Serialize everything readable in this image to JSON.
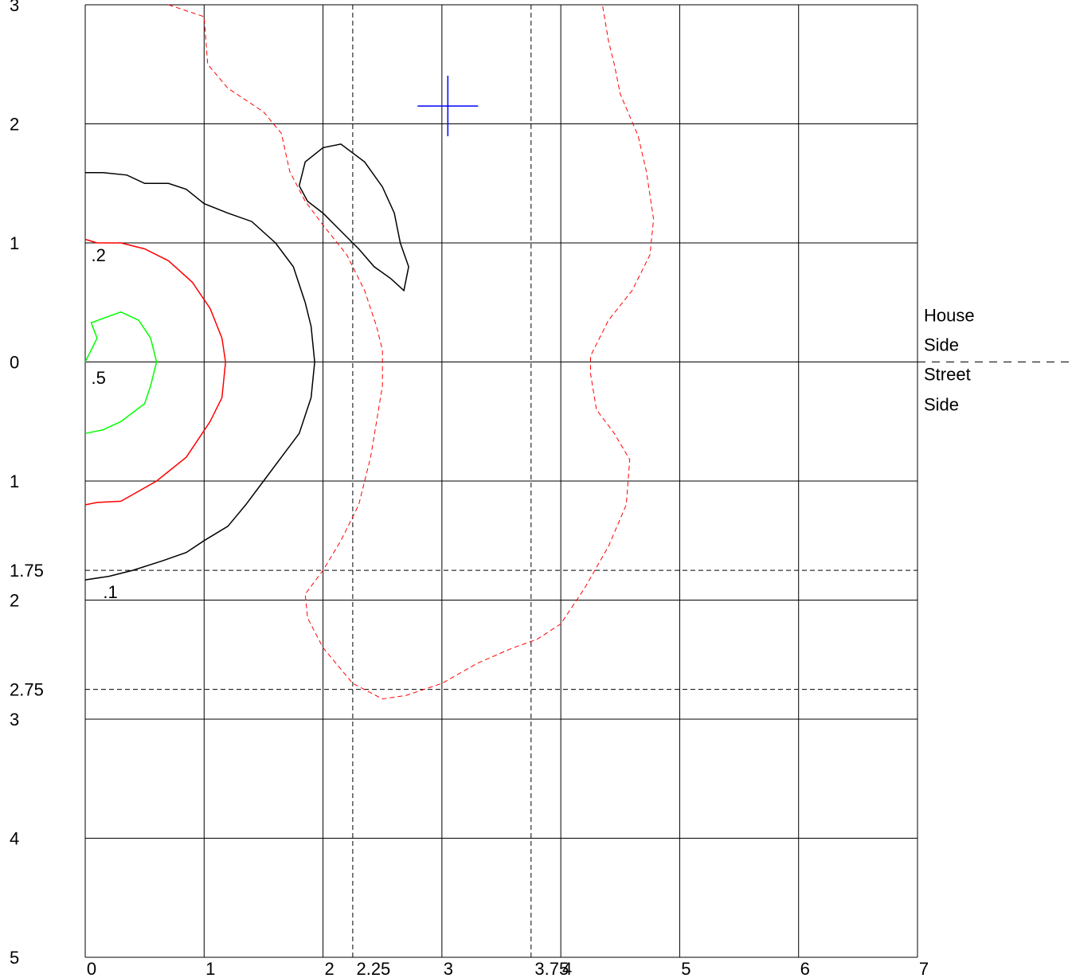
{
  "chart_data": {
    "type": "contour",
    "title": "",
    "x_axis": {
      "min": 0,
      "max": 7,
      "tick_labels": [
        "0",
        "1",
        "2",
        "3",
        "4",
        "5",
        "6",
        "7"
      ],
      "extra_lines": [
        {
          "value": 2.25,
          "label": "2.25"
        },
        {
          "value": 3.75,
          "label": "3.75"
        }
      ]
    },
    "y_axis": {
      "min": -5,
      "max": 3,
      "tick_labels": [
        {
          "value": 3,
          "label": "3"
        },
        {
          "value": 2,
          "label": "2"
        },
        {
          "value": 1,
          "label": "1"
        },
        {
          "value": 0,
          "label": "0"
        },
        {
          "value": -1,
          "label": "1"
        },
        {
          "value": -2,
          "label": "2"
        },
        {
          "value": -3,
          "label": "3"
        },
        {
          "value": -4,
          "label": "4"
        },
        {
          "value": -5,
          "label": "5"
        }
      ],
      "extra_lines": [
        {
          "value": -1.75,
          "label": "1.75"
        },
        {
          "value": -2.75,
          "label": "2.75"
        }
      ]
    },
    "grid": true,
    "side_labels": {
      "house_line1": "House",
      "house_line2": "Side",
      "street_line1": "Street",
      "street_line2": "Side"
    },
    "marker": {
      "x": 3.05,
      "y": 2.15,
      "color": "#0000ff"
    },
    "contours": [
      {
        "level_label": ".5",
        "color": "#00ff00",
        "style": "solid",
        "label_at": [
          0.05,
          -0.13
        ],
        "points": [
          [
            0,
            0
          ],
          [
            0.1,
            0.2
          ],
          [
            0.05,
            0.33
          ],
          [
            0.3,
            0.42
          ],
          [
            0.45,
            0.35
          ],
          [
            0.55,
            0.2
          ],
          [
            0.6,
            0
          ],
          [
            0.55,
            -0.2
          ],
          [
            0.5,
            -0.35
          ],
          [
            0.3,
            -0.5
          ],
          [
            0.15,
            -0.57
          ],
          [
            0,
            -0.6
          ]
        ]
      },
      {
        "level_label": ".2",
        "color": "#ff0000",
        "style": "solid",
        "label_at": [
          0.05,
          0.9
        ],
        "points": [
          [
            0,
            1.03
          ],
          [
            0.1,
            1
          ],
          [
            0.3,
            1
          ],
          [
            0.5,
            0.95
          ],
          [
            0.7,
            0.85
          ],
          [
            0.9,
            0.67
          ],
          [
            1.05,
            0.45
          ],
          [
            1.15,
            0.2
          ],
          [
            1.18,
            0
          ],
          [
            1.15,
            -0.3
          ],
          [
            1.05,
            -0.5
          ],
          [
            0.85,
            -0.8
          ],
          [
            0.6,
            -1
          ],
          [
            0.3,
            -1.17
          ],
          [
            0.1,
            -1.18
          ],
          [
            0,
            -1.2
          ]
        ]
      },
      {
        "level_label": ".1",
        "color": "#000000",
        "style": "solid",
        "label_at": [
          0.15,
          -1.93
        ],
        "points": [
          [
            0,
            1.59
          ],
          [
            0.15,
            1.59
          ],
          [
            0.35,
            1.57
          ],
          [
            0.5,
            1.5
          ],
          [
            0.7,
            1.5
          ],
          [
            0.85,
            1.45
          ],
          [
            1,
            1.33
          ],
          [
            1.2,
            1.25
          ],
          [
            1.4,
            1.18
          ],
          [
            1.6,
            1.0
          ],
          [
            1.75,
            0.8
          ],
          [
            1.85,
            0.5
          ],
          [
            1.9,
            0.3
          ],
          [
            1.93,
            0
          ],
          [
            1.9,
            -0.3
          ],
          [
            1.8,
            -0.6
          ],
          [
            1.65,
            -0.8
          ],
          [
            1.5,
            -1
          ],
          [
            1.35,
            -1.2
          ],
          [
            1.2,
            -1.38
          ],
          [
            1,
            -1.5
          ],
          [
            0.85,
            -1.6
          ],
          [
            0.65,
            -1.67
          ],
          [
            0.4,
            -1.75
          ],
          [
            0.2,
            -1.8
          ],
          [
            0,
            -1.83
          ]
        ]
      },
      {
        "level_label": "",
        "color": "#000000",
        "style": "solid",
        "label_at": null,
        "points": [
          [
            1.8,
            1.48
          ],
          [
            1.85,
            1.68
          ],
          [
            2.0,
            1.8
          ],
          [
            2.15,
            1.83
          ],
          [
            2.35,
            1.68
          ],
          [
            2.5,
            1.47
          ],
          [
            2.6,
            1.25
          ],
          [
            2.65,
            1.0
          ],
          [
            2.72,
            0.8
          ],
          [
            2.68,
            0.6
          ],
          [
            2.57,
            0.7
          ],
          [
            2.43,
            0.8
          ],
          [
            2.3,
            0.95
          ],
          [
            2.15,
            1.1
          ],
          [
            2.0,
            1.25
          ],
          [
            1.87,
            1.35
          ],
          [
            1.8,
            1.48
          ]
        ]
      },
      {
        "level_label": "",
        "color": "#ff0000",
        "style": "dashed",
        "label_at": null,
        "points": [
          [
            0.7,
            3
          ],
          [
            1,
            2.9
          ],
          [
            1.03,
            2.5
          ],
          [
            1.2,
            2.3
          ],
          [
            1.5,
            2.1
          ],
          [
            1.65,
            1.92
          ],
          [
            1.72,
            1.6
          ],
          [
            1.85,
            1.35
          ],
          [
            2,
            1.15
          ],
          [
            2.2,
            0.9
          ],
          [
            2.35,
            0.6
          ],
          [
            2.45,
            0.3
          ],
          [
            2.5,
            0.1
          ],
          [
            2.5,
            -0.2
          ],
          [
            2.45,
            -0.5
          ],
          [
            2.4,
            -0.8
          ],
          [
            2.3,
            -1.2
          ],
          [
            2.15,
            -1.5
          ],
          [
            2,
            -1.75
          ],
          [
            1.85,
            -1.95
          ],
          [
            1.87,
            -2.15
          ],
          [
            2,
            -2.4
          ],
          [
            2.25,
            -2.7
          ],
          [
            2.5,
            -2.83
          ],
          [
            2.7,
            -2.8
          ],
          [
            3,
            -2.7
          ],
          [
            3.3,
            -2.53
          ],
          [
            3.6,
            -2.4
          ],
          [
            3.8,
            -2.33
          ],
          [
            4,
            -2.2
          ],
          [
            4.2,
            -1.9
          ],
          [
            4.4,
            -1.55
          ],
          [
            4.55,
            -1.2
          ],
          [
            4.58,
            -0.82
          ],
          [
            4.45,
            -0.6
          ],
          [
            4.3,
            -0.4
          ],
          [
            4.25,
            -0.1
          ],
          [
            4.25,
            0.05
          ],
          [
            4.4,
            0.35
          ],
          [
            4.6,
            0.6
          ],
          [
            4.75,
            0.9
          ],
          [
            4.78,
            1.2
          ],
          [
            4.72,
            1.6
          ],
          [
            4.65,
            1.9
          ],
          [
            4.5,
            2.25
          ],
          [
            4.45,
            2.5
          ],
          [
            4.4,
            2.7
          ],
          [
            4.35,
            3
          ]
        ]
      }
    ],
    "colors": {
      "grid": "#000000",
      "reference_lines": "#000000",
      "background": "#ffffff"
    }
  }
}
